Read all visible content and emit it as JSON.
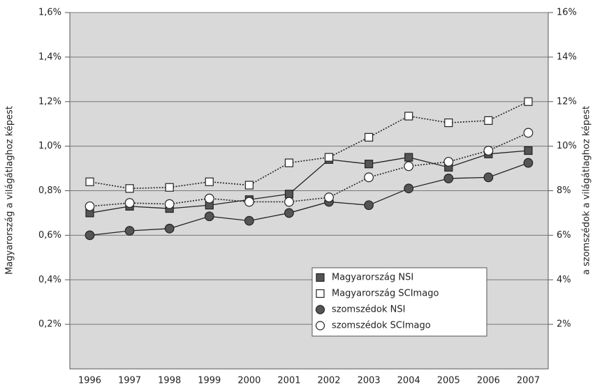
{
  "chart_data": {
    "type": "line",
    "categories": [
      "1996",
      "1997",
      "1998",
      "1999",
      "2000",
      "2001",
      "2002",
      "2003",
      "2004",
      "2005",
      "2006",
      "2007"
    ],
    "ylabel": "Magyarország a világátlaghoz képest",
    "y2label": "a szomszédok a világátlaghoz képest",
    "ylim": [
      0,
      1.6
    ],
    "yticks": [
      {
        "value": 0.2,
        "label": "0,2%"
      },
      {
        "value": 0.4,
        "label": "0,4%"
      },
      {
        "value": 0.6,
        "label": "0,6%"
      },
      {
        "value": 0.8,
        "label": "0,8%"
      },
      {
        "value": 1.0,
        "label": "1,0%"
      },
      {
        "value": 1.2,
        "label": "1,2%"
      },
      {
        "value": 1.4,
        "label": "1,4%"
      },
      {
        "value": 1.6,
        "label": "1,6%"
      }
    ],
    "y2lim": [
      0,
      16
    ],
    "y2ticks": [
      {
        "value": 2,
        "label": "2%"
      },
      {
        "value": 4,
        "label": "4%"
      },
      {
        "value": 6,
        "label": "6%"
      },
      {
        "value": 8,
        "label": "8%"
      },
      {
        "value": 10,
        "label": "10%"
      },
      {
        "value": 12,
        "label": "12%"
      },
      {
        "value": 14,
        "label": "14%"
      },
      {
        "value": 16,
        "label": "16%"
      }
    ],
    "grid": true,
    "legend": "lower right",
    "series": [
      {
        "name": "Magyarország NSI",
        "color": "#555555",
        "marker": "square",
        "line_style": "solid",
        "values": [
          0.7,
          0.73,
          0.72,
          0.735,
          0.76,
          0.785,
          0.94,
          0.92,
          0.95,
          0.905,
          0.965,
          0.98
        ]
      },
      {
        "name": "Magyarország SCImago",
        "color": "#ffffff",
        "marker": "square",
        "line_style": "dotted",
        "values": [
          0.84,
          0.81,
          0.815,
          0.84,
          0.825,
          0.925,
          0.95,
          1.04,
          1.135,
          1.105,
          1.115,
          1.2
        ]
      },
      {
        "name": "szomszédok NSI",
        "color": "#555555",
        "marker": "circle",
        "line_style": "solid",
        "axis": "y2",
        "values": [
          6.0,
          6.2,
          6.3,
          6.85,
          6.65,
          7.0,
          7.5,
          7.35,
          8.1,
          8.55,
          8.6,
          9.25
        ]
      },
      {
        "name": "szomszédok SCImago",
        "color": "#ffffff",
        "marker": "circle",
        "line_style": "dotted",
        "axis": "y2",
        "values": [
          7.3,
          7.45,
          7.4,
          7.65,
          7.5,
          7.5,
          7.7,
          8.6,
          9.1,
          9.3,
          9.8,
          10.6
        ]
      }
    ]
  }
}
